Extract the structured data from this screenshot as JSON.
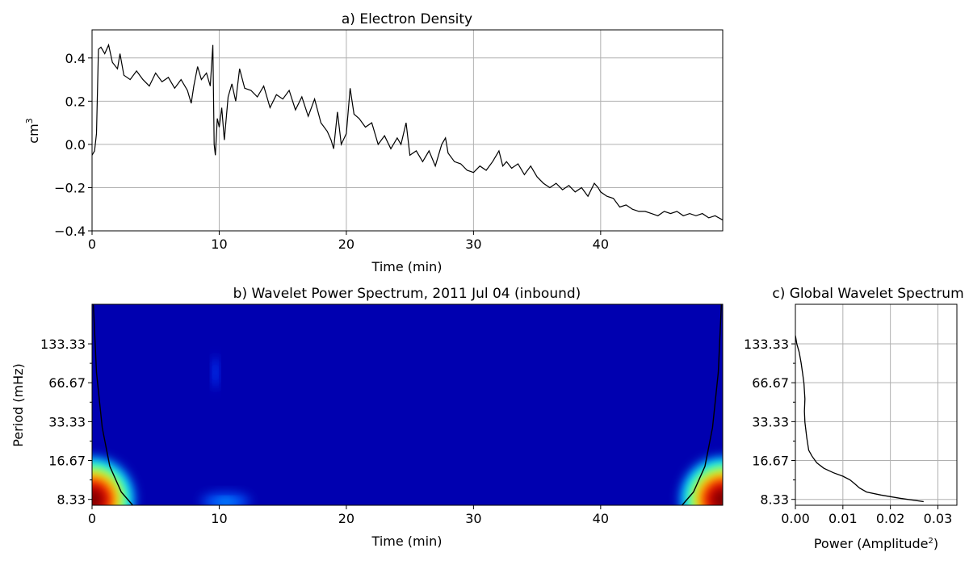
{
  "chart_data": [
    {
      "type": "line",
      "title": "a) Electron Density",
      "xlabel": "Time (min)",
      "ylabel": "cm",
      "ylabel_sup": "3",
      "xlim": [
        0,
        49.6
      ],
      "ylim": [
        -0.4,
        0.53
      ],
      "xticks": [
        0,
        10,
        20,
        30,
        40
      ],
      "yticks": [
        -0.4,
        -0.2,
        0.0,
        0.2,
        0.4
      ],
      "xtick_labels": [
        "0",
        "10",
        "20",
        "30",
        "40"
      ],
      "ytick_labels": [
        "−0.4",
        "−0.2",
        "0.0",
        "0.2",
        "0.4"
      ],
      "grid": true,
      "line_color": "#000000",
      "series": [
        {
          "x": [
            0,
            0.2,
            0.35,
            0.5,
            0.7,
            1.0,
            1.3,
            1.6,
            2.0,
            2.2,
            2.5,
            3.0,
            3.5,
            4.0,
            4.5,
            5.0,
            5.5,
            6.0,
            6.5,
            7.0,
            7.5,
            7.8,
            8.0,
            8.3,
            8.6,
            9.0,
            9.3,
            9.5,
            9.6,
            9.7,
            9.85,
            10.0,
            10.2,
            10.4,
            10.7,
            11.0,
            11.3,
            11.6,
            12.0,
            12.5,
            13.0,
            13.5,
            14.0,
            14.5,
            15.0,
            15.5,
            16.0,
            16.5,
            17.0,
            17.5,
            18.0,
            18.5,
            18.8,
            19.0,
            19.3,
            19.6,
            20.0,
            20.3,
            20.6,
            21.0,
            21.5,
            22.0,
            22.5,
            23.0,
            23.5,
            24.0,
            24.3,
            24.7,
            25.0,
            25.5,
            26.0,
            26.5,
            27.0,
            27.5,
            27.8,
            28.0,
            28.5,
            29.0,
            29.5,
            30.0,
            30.5,
            31.0,
            31.5,
            32.0,
            32.3,
            32.6,
            33.0,
            33.5,
            34.0,
            34.5,
            35.0,
            35.5,
            36.0,
            36.5,
            37.0,
            37.5,
            38.0,
            38.5,
            39.0,
            39.5,
            39.8,
            40.0,
            40.5,
            41.0,
            41.5,
            42.0,
            42.5,
            43.0,
            43.5,
            44.0,
            44.5,
            45.0,
            45.5,
            46.0,
            46.5,
            47.0,
            47.5,
            48.0,
            48.5,
            49.0,
            49.6
          ],
          "y": [
            -0.05,
            -0.03,
            0.05,
            0.44,
            0.45,
            0.42,
            0.46,
            0.38,
            0.35,
            0.42,
            0.32,
            0.3,
            0.34,
            0.3,
            0.27,
            0.33,
            0.29,
            0.31,
            0.26,
            0.3,
            0.25,
            0.19,
            0.27,
            0.36,
            0.3,
            0.33,
            0.27,
            0.46,
            0.0,
            -0.05,
            0.12,
            0.08,
            0.17,
            0.02,
            0.22,
            0.28,
            0.2,
            0.35,
            0.26,
            0.25,
            0.22,
            0.27,
            0.17,
            0.23,
            0.21,
            0.25,
            0.16,
            0.22,
            0.13,
            0.21,
            0.1,
            0.06,
            0.02,
            -0.02,
            0.15,
            0.0,
            0.05,
            0.26,
            0.14,
            0.12,
            0.08,
            0.1,
            0.0,
            0.04,
            -0.02,
            0.03,
            0.0,
            0.1,
            -0.05,
            -0.03,
            -0.08,
            -0.03,
            -0.1,
            0.0,
            0.03,
            -0.04,
            -0.08,
            -0.09,
            -0.12,
            -0.13,
            -0.1,
            -0.12,
            -0.08,
            -0.03,
            -0.1,
            -0.08,
            -0.11,
            -0.09,
            -0.14,
            -0.1,
            -0.15,
            -0.18,
            -0.2,
            -0.18,
            -0.21,
            -0.19,
            -0.22,
            -0.2,
            -0.24,
            -0.18,
            -0.2,
            -0.22,
            -0.24,
            -0.25,
            -0.29,
            -0.28,
            -0.3,
            -0.31,
            -0.31,
            -0.32,
            -0.33,
            -0.31,
            -0.32,
            -0.31,
            -0.33,
            -0.32,
            -0.33,
            -0.32,
            -0.34,
            -0.33,
            -0.35
          ]
        }
      ]
    },
    {
      "type": "heatmap",
      "title": "b) Wavelet Power Spectrum, 2011 Jul 04 (inbound)",
      "xlabel": "Time (min)",
      "ylabel": "Period (mHz)",
      "xlim": [
        0,
        49.6
      ],
      "xticks": [
        0,
        10,
        20,
        30,
        40
      ],
      "xtick_labels": [
        "0",
        "10",
        "20",
        "30",
        "40"
      ],
      "yscale": "log",
      "ytick_labels": [
        "133.33",
        "66.67",
        "33.33",
        "16.67",
        "8.33"
      ],
      "ytick_values": [
        133.33,
        66.67,
        33.33,
        16.67,
        8.33
      ],
      "ylim": [
        7.5,
        270
      ],
      "background_color": "#0000b0",
      "colormap": "jet",
      "features": [
        {
          "name": "left-edge",
          "x": 0,
          "y": 8.33,
          "level": 1.0
        },
        {
          "name": "right-edge",
          "x": 49.6,
          "y": 8.33,
          "level": 1.0
        },
        {
          "name": "ten-min-event-low",
          "x": 10.5,
          "y": 8.0,
          "level": 0.28
        },
        {
          "name": "ten-min-event-high",
          "x": 9.7,
          "y": 80,
          "level": 0.2
        }
      ],
      "cone_of_influence": {
        "left": {
          "x": [
            0.1,
            0.35,
            0.8,
            1.4,
            2.3,
            3.2
          ],
          "y": [
            270,
            80,
            30,
            15,
            9.5,
            7.5
          ]
        },
        "right": {
          "x": [
            49.5,
            49.25,
            48.8,
            48.2,
            47.3,
            46.4
          ],
          "y": [
            270,
            80,
            30,
            15,
            9.5,
            7.5
          ]
        }
      }
    },
    {
      "type": "line",
      "title": "c) Global Wavelet Spectrum",
      "xlabel": "Power (Amplitude",
      "xlabel_sup": "2",
      "xlabel_end": ")",
      "xlim": [
        0,
        0.034
      ],
      "xticks": [
        0.0,
        0.01,
        0.02,
        0.03
      ],
      "xtick_labels": [
        "0.00",
        "0.01",
        "0.02",
        "0.03"
      ],
      "yscale": "log",
      "ylim": [
        7.5,
        270
      ],
      "ytick_labels": [
        "133.33",
        "66.67",
        "33.33",
        "16.67",
        "8.33"
      ],
      "ytick_values": [
        133.33,
        66.67,
        33.33,
        16.67,
        8.33
      ],
      "grid": true,
      "series": [
        {
          "x": [
            0.0,
            0.0003,
            0.0008,
            0.0012,
            0.0015,
            0.0018,
            0.002,
            0.0019,
            0.002,
            0.0024,
            0.0028,
            0.0035,
            0.0045,
            0.006,
            0.008,
            0.01,
            0.0115,
            0.0125,
            0.0135,
            0.015,
            0.018,
            0.022,
            0.027
          ],
          "y": [
            155,
            133,
            115,
            95,
            80,
            66,
            50,
            40,
            33,
            25,
            20,
            18,
            16,
            14.5,
            13.4,
            12.6,
            11.8,
            11.0,
            10.2,
            9.5,
            9.0,
            8.5,
            8.0
          ]
        }
      ]
    }
  ]
}
